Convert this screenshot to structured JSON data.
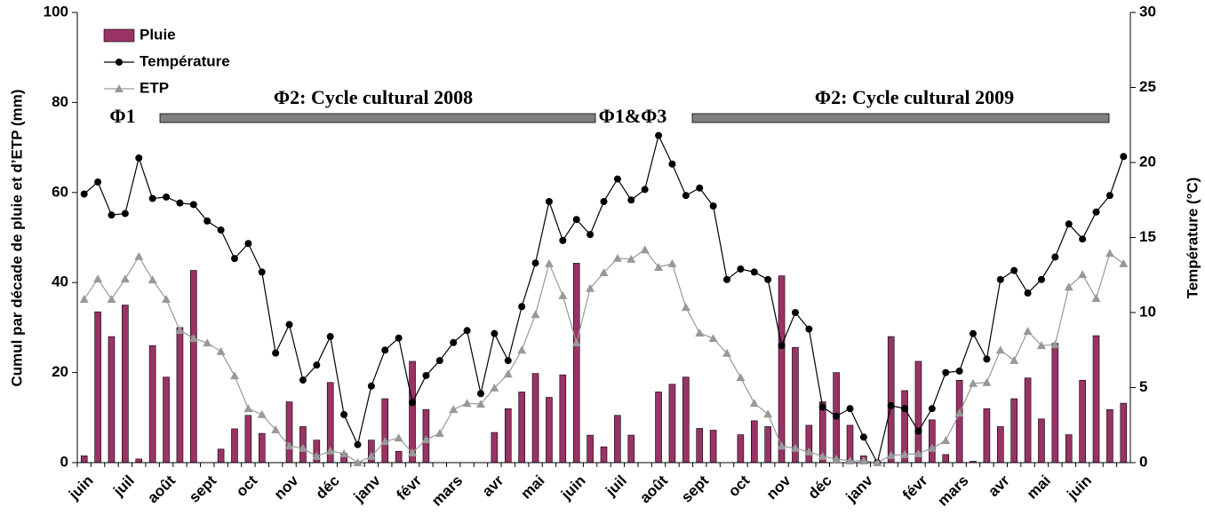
{
  "chart_data": {
    "type": "bar",
    "categories": [
      "juin",
      null,
      null,
      "juil",
      null,
      null,
      "août",
      null,
      null,
      "sept",
      null,
      null,
      "oct",
      null,
      null,
      "nov",
      null,
      null,
      "déc",
      null,
      null,
      "janv",
      null,
      null,
      "févr",
      null,
      null,
      "mars",
      null,
      null,
      "avr",
      null,
      null,
      "mai",
      null,
      null,
      "juin",
      null,
      null,
      "juil",
      null,
      null,
      "août",
      null,
      null,
      "sept",
      null,
      null,
      "oct",
      null,
      null,
      "nov",
      null,
      null,
      "déc",
      null,
      null,
      "janv",
      null,
      null,
      null,
      "févr",
      null,
      null,
      "mars",
      null,
      null,
      "avr",
      null,
      null,
      "mai",
      null,
      null,
      "juin",
      null,
      null,
      null
    ],
    "series": [
      {
        "name": "Pluie",
        "type": "bar",
        "color": "#993366",
        "values": [
          1.5,
          33.5,
          28,
          35,
          0.8,
          26,
          19,
          30,
          42.7,
          0,
          3,
          7.5,
          10.5,
          6.5,
          0,
          13.5,
          8,
          5,
          17.8,
          2,
          0,
          5,
          14.2,
          2.5,
          22.5,
          11.8,
          0,
          0,
          0,
          0,
          6.7,
          12,
          15.7,
          19.8,
          14.5,
          19.5,
          44.3,
          6.1,
          3.5,
          10.5,
          6.1,
          0,
          15.7,
          17.4,
          19,
          7.6,
          7.2,
          0,
          6.2,
          9.3,
          8,
          41.5,
          25.6,
          8.3,
          13.5,
          20,
          8.3,
          1.5,
          0,
          28,
          16,
          22.5,
          9.5,
          1.8,
          18.3,
          0.3,
          12,
          8,
          14.2,
          18.8,
          9.7,
          26.5,
          6.2,
          18.3,
          28.2,
          11.8,
          13.2
        ]
      },
      {
        "name": "Température",
        "type": "line",
        "axis": "y2",
        "color": "#000000",
        "marker": "circle",
        "values": [
          17.9,
          18.7,
          16.5,
          16.6,
          20.3,
          17.6,
          17.7,
          17.3,
          17.2,
          16.1,
          15.5,
          13.6,
          14.6,
          12.7,
          7.3,
          9.2,
          5.5,
          6.5,
          8.4,
          3.2,
          1.2,
          5.1,
          7.5,
          8.3,
          4,
          5.8,
          6.8,
          8,
          8.8,
          4.6,
          8.6,
          6.8,
          10.4,
          13.3,
          17.4,
          14.8,
          16.2,
          15.2,
          17.4,
          18.9,
          17.5,
          18.2,
          21.8,
          19.9,
          17.8,
          18.3,
          17.1,
          12.2,
          12.9,
          12.7,
          12.2,
          7.8,
          10,
          8.9,
          3.7,
          3.1,
          3.6,
          1.7,
          0,
          3.8,
          3.6,
          2.1,
          3.6,
          6,
          6.1,
          8.6,
          6.9,
          12.2,
          12.8,
          11.3,
          12.2,
          13.7,
          15.9,
          14.9,
          16.7,
          17.8,
          20.4
        ]
      },
      {
        "name": "ETP",
        "type": "line",
        "color": "#999999",
        "marker": "triangle",
        "values": [
          36.3,
          40.8,
          36.3,
          40.8,
          45.8,
          40.6,
          36.3,
          29.4,
          27.6,
          26.6,
          24.7,
          19.3,
          12,
          10.7,
          7.3,
          3.7,
          3.2,
          1.4,
          2.6,
          2,
          0,
          1.4,
          4.7,
          5.5,
          2.2,
          5.1,
          6.5,
          11.8,
          13.2,
          13,
          16.6,
          19.7,
          25,
          32.9,
          44.2,
          37.1,
          26.6,
          38.7,
          42.2,
          45.4,
          45.2,
          47.3,
          43.4,
          44.2,
          34.5,
          28.8,
          27.6,
          24.3,
          18.9,
          13.2,
          10.8,
          3.7,
          3.2,
          2.4,
          1.4,
          0.8,
          0.4,
          0.4,
          0,
          1.6,
          1.8,
          2,
          3.2,
          4.9,
          11,
          17.6,
          17.8,
          25,
          22.7,
          29.2,
          26,
          26.2,
          39,
          41.8,
          36.5,
          46.5,
          44.2
        ]
      }
    ],
    "ylabel": "Cumul par décade de pluie et d’ETP (mm)",
    "y2label": "Température (°C)",
    "ylim": [
      0,
      100
    ],
    "yticks": [
      0,
      20,
      40,
      60,
      80,
      100
    ],
    "y2lim": [
      0,
      30
    ],
    "y2ticks": [
      0,
      5,
      10,
      15,
      20,
      25,
      30
    ],
    "legend": "upper left",
    "annotations": [
      "Φ1",
      "Φ2: Cycle cultural 2008",
      "Φ1&Φ3",
      "Φ2: Cycle cultural 2009"
    ]
  }
}
